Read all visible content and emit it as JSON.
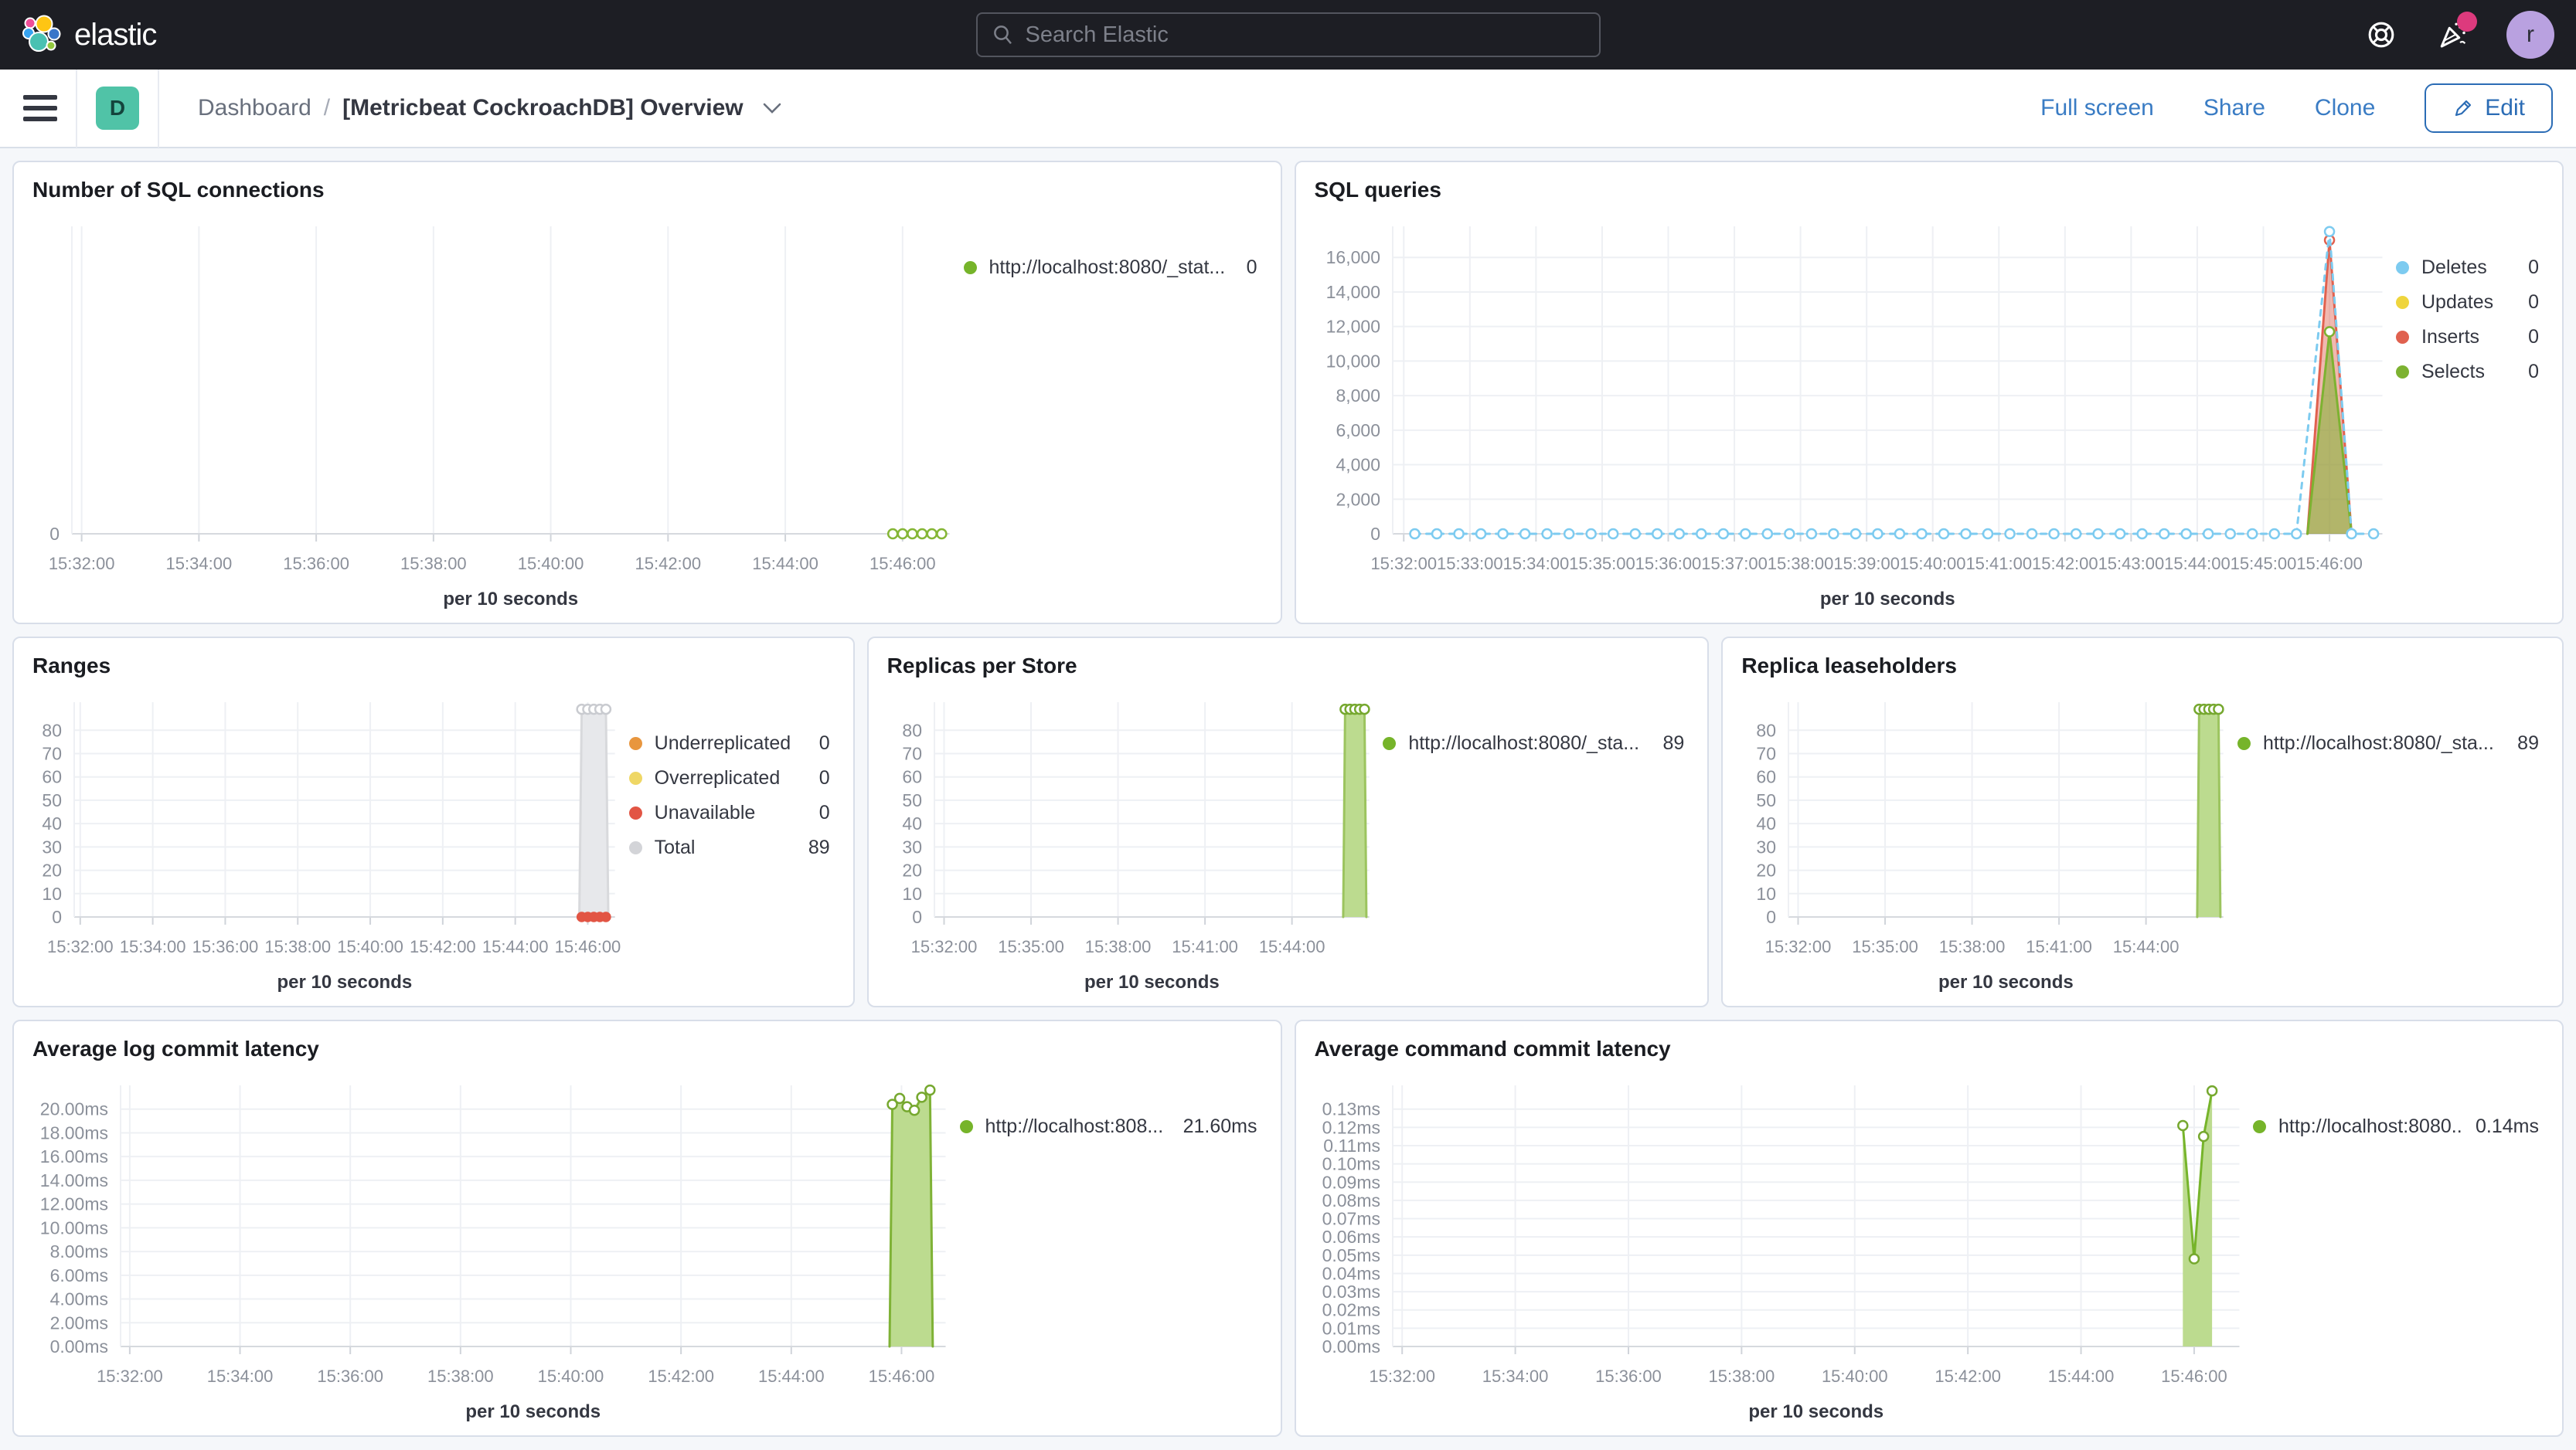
{
  "header": {
    "logo_label": "elastic",
    "search": {
      "placeholder": "Search Elastic"
    },
    "avatar_initial": "r"
  },
  "toolbar": {
    "breadcrumb_root": "Dashboard",
    "breadcrumb_sep": "/",
    "badge": "D",
    "title": "[Metricbeat CockroachDB] Overview",
    "actions": {
      "full_screen": "Full screen",
      "share": "Share",
      "clone": "Clone",
      "edit": "Edit"
    }
  },
  "colors": {
    "header_bg": "#1d1e24",
    "panel_border": "#d8dee9",
    "primary_blue": "#2b6cb5",
    "badge_teal": "#50c3a7",
    "series_green": "#76b42a",
    "series_blue": "#7dcbf0",
    "series_red": "#e0614f",
    "series_yellow": "#efd53d",
    "series_orange": "#e8963e",
    "series_gray": "#d3d4d8"
  },
  "panels": [
    {
      "title": "Number of SQL connections",
      "legend": [
        {
          "label": "http://localhost:8080/_stat...",
          "value": "0",
          "color": "#76b42a"
        }
      ]
    },
    {
      "title": "SQL queries",
      "legend": [
        {
          "label": "Deletes",
          "value": "0",
          "color": "#7dcbf0"
        },
        {
          "label": "Updates",
          "value": "0",
          "color": "#efd53d"
        },
        {
          "label": "Inserts",
          "value": "0",
          "color": "#e0614f"
        },
        {
          "label": "Selects",
          "value": "0",
          "color": "#7db231"
        }
      ]
    },
    {
      "title": "Ranges",
      "legend": [
        {
          "label": "Underreplicated",
          "value": "0",
          "color": "#e8963e"
        },
        {
          "label": "Overreplicated",
          "value": "0",
          "color": "#efd765"
        },
        {
          "label": "Unavailable",
          "value": "0",
          "color": "#e25544"
        },
        {
          "label": "Total",
          "value": "89",
          "color": "#d3d4d8"
        }
      ]
    },
    {
      "title": "Replicas per Store",
      "legend": [
        {
          "label": "http://localhost:8080/_sta...",
          "value": "89",
          "color": "#76b42a"
        }
      ]
    },
    {
      "title": "Replica leaseholders",
      "legend": [
        {
          "label": "http://localhost:8080/_sta...",
          "value": "89",
          "color": "#76b42a"
        }
      ]
    },
    {
      "title": "Average log commit latency",
      "legend": [
        {
          "label": "http://localhost:808...",
          "value": "21.60ms",
          "color": "#76b42a"
        }
      ]
    },
    {
      "title": "Average command commit latency",
      "legend": [
        {
          "label": "http://localhost:8080...",
          "value": "0.14ms",
          "color": "#76b42a"
        }
      ]
    }
  ],
  "chart_data": [
    {
      "type": "line",
      "title": "Number of SQL connections",
      "xlabel": "per 10 seconds",
      "x_domain": [
        "15:31:50",
        "15:46:48"
      ],
      "x_ticks": [
        "15:32:00",
        "15:34:00",
        "15:36:00",
        "15:38:00",
        "15:40:00",
        "15:42:00",
        "15:44:00",
        "15:46:00"
      ],
      "y_ticks": {
        "values": [
          0
        ],
        "labels": [
          "0"
        ]
      },
      "ylim": [
        0,
        9
      ],
      "series": [
        {
          "name": "http://localhost:8080/_stat...",
          "color": "#85b636",
          "dash": true,
          "marker": "open",
          "points_range": {
            "from": "15:45:50",
            "to": "15:46:40",
            "step_s": 10,
            "v": 0
          }
        }
      ]
    },
    {
      "type": "line",
      "title": "SQL queries",
      "xlabel": "per 10 seconds",
      "x_domain": [
        "15:31:50",
        "15:46:48"
      ],
      "x_ticks": [
        "15:32:00",
        "15:33:00",
        "15:34:00",
        "15:35:00",
        "15:36:00",
        "15:37:00",
        "15:38:00",
        "15:39:00",
        "15:40:00",
        "15:41:00",
        "15:42:00",
        "15:43:00",
        "15:44:00",
        "15:45:00",
        "15:46:00"
      ],
      "y_ticks": {
        "values": [
          0,
          2000,
          4000,
          6000,
          8000,
          10000,
          12000,
          14000,
          16000
        ],
        "labels": [
          "0",
          "2,000",
          "4,000",
          "6,000",
          "8,000",
          "10,000",
          "12,000",
          "14,000",
          "16,000"
        ]
      },
      "ylim": [
        0,
        17800
      ],
      "series": [
        {
          "name": "Updates",
          "color": "#efd53d",
          "marker": null,
          "points": []
        },
        {
          "name": "Inserts",
          "color": "#e0614f",
          "fill": "rgba(224,97,79,0.45)",
          "marker": "open",
          "points": [
            [
              "15:45:40",
              0
            ],
            [
              "15:46:00",
              17000
            ],
            [
              "15:46:20",
              0
            ]
          ],
          "marker_points": [
            [
              "15:46:00",
              17000
            ]
          ]
        },
        {
          "name": "Selects",
          "color": "#7db231",
          "fill": "rgba(125,178,49,0.55)",
          "marker": "open",
          "points": [
            [
              "15:45:40",
              0
            ],
            [
              "15:46:00",
              11700
            ],
            [
              "15:46:20",
              0
            ]
          ],
          "marker_points": [
            [
              "15:46:00",
              11700
            ]
          ]
        },
        {
          "name": "Deletes",
          "color": "#7dcbf0",
          "dash": true,
          "marker": "open",
          "points_range": {
            "from": "15:32:10",
            "to": "15:45:40",
            "step_s": 20,
            "v": 0
          },
          "points": [
            [
              "15:46:00",
              17500
            ],
            [
              "15:46:20",
              0
            ],
            [
              "15:46:40",
              0
            ]
          ]
        }
      ]
    },
    {
      "type": "area",
      "title": "Ranges",
      "xlabel": "per 10 seconds",
      "x_domain": [
        "15:31:50",
        "15:46:45"
      ],
      "x_ticks": [
        "15:32:00",
        "15:34:00",
        "15:36:00",
        "15:38:00",
        "15:40:00",
        "15:42:00",
        "15:44:00",
        "15:46:00"
      ],
      "y_ticks": {
        "values": [
          0,
          10,
          20,
          30,
          40,
          50,
          60,
          70,
          80
        ],
        "labels": [
          "0",
          "10",
          "20",
          "30",
          "40",
          "50",
          "60",
          "70",
          "80"
        ]
      },
      "ylim": [
        0,
        92
      ],
      "series": [
        {
          "name": "Total",
          "color": "#d8d9dc",
          "fill": "#e7e8eb",
          "marker": "open",
          "marker_color": "#c9cbd0",
          "points_range": {
            "from": "15:45:50",
            "to": "15:46:30",
            "step_s": 10,
            "v": 89
          },
          "points": [
            [
              "15:45:46",
              0
            ],
            [
              "15:46:34",
              0
            ]
          ],
          "marker_points": [
            [
              "15:45:50",
              89
            ],
            [
              "15:46:00",
              89
            ],
            [
              "15:46:10",
              89
            ],
            [
              "15:46:20",
              89
            ],
            [
              "15:46:30",
              89
            ]
          ]
        },
        {
          "name": "Unavailable",
          "color": "#e25544",
          "marker": "filled",
          "points_range": {
            "from": "15:45:50",
            "to": "15:46:30",
            "step_s": 10,
            "v": 0
          }
        }
      ]
    },
    {
      "type": "area",
      "title": "Replicas per Store",
      "xlabel": "per 10 seconds",
      "x_domain": [
        "15:31:40",
        "15:46:40"
      ],
      "x_ticks": [
        "15:32:00",
        "15:35:00",
        "15:38:00",
        "15:41:00",
        "15:44:00"
      ],
      "y_ticks": {
        "values": [
          0,
          10,
          20,
          30,
          40,
          50,
          60,
          70,
          80
        ],
        "labels": [
          "0",
          "10",
          "20",
          "30",
          "40",
          "50",
          "60",
          "70",
          "80"
        ]
      },
      "ylim": [
        0,
        92
      ],
      "series": [
        {
          "name": "http://localhost:8080/_sta...",
          "color": "#9cc45f",
          "fill": "#bcdb8f",
          "marker": "open",
          "marker_color": "#76a82f",
          "points_range": {
            "from": "15:45:50",
            "to": "15:46:30",
            "step_s": 10,
            "v": 89
          },
          "points": [
            [
              "15:45:46",
              0
            ],
            [
              "15:46:34",
              0
            ]
          ],
          "marker_points": [
            [
              "15:45:50",
              89
            ],
            [
              "15:46:00",
              89
            ],
            [
              "15:46:10",
              89
            ],
            [
              "15:46:20",
              89
            ],
            [
              "15:46:30",
              89
            ]
          ]
        }
      ]
    },
    {
      "type": "area",
      "title": "Replica leaseholders",
      "xlabel": "per 10 seconds",
      "x_domain": [
        "15:31:40",
        "15:46:40"
      ],
      "x_ticks": [
        "15:32:00",
        "15:35:00",
        "15:38:00",
        "15:41:00",
        "15:44:00"
      ],
      "y_ticks": {
        "values": [
          0,
          10,
          20,
          30,
          40,
          50,
          60,
          70,
          80
        ],
        "labels": [
          "0",
          "10",
          "20",
          "30",
          "40",
          "50",
          "60",
          "70",
          "80"
        ]
      },
      "ylim": [
        0,
        92
      ],
      "series": [
        {
          "name": "http://localhost:8080/_sta...",
          "color": "#9cc45f",
          "fill": "#bcdb8f",
          "marker": "open",
          "marker_color": "#76a82f",
          "points_range": {
            "from": "15:45:50",
            "to": "15:46:30",
            "step_s": 10,
            "v": 89
          },
          "points": [
            [
              "15:45:46",
              0
            ],
            [
              "15:46:34",
              0
            ]
          ],
          "marker_points": [
            [
              "15:45:50",
              89
            ],
            [
              "15:46:00",
              89
            ],
            [
              "15:46:10",
              89
            ],
            [
              "15:46:20",
              89
            ],
            [
              "15:46:30",
              89
            ]
          ]
        }
      ]
    },
    {
      "type": "area",
      "title": "Average log commit latency",
      "xlabel": "per 10 seconds",
      "x_domain": [
        "15:31:50",
        "15:46:48"
      ],
      "x_ticks": [
        "15:32:00",
        "15:34:00",
        "15:36:00",
        "15:38:00",
        "15:40:00",
        "15:42:00",
        "15:44:00",
        "15:46:00"
      ],
      "y_ticks": {
        "values": [
          0,
          2,
          4,
          6,
          8,
          10,
          12,
          14,
          16,
          18,
          20
        ],
        "labels": [
          "0.00ms",
          "2.00ms",
          "4.00ms",
          "6.00ms",
          "8.00ms",
          "10.00ms",
          "12.00ms",
          "14.00ms",
          "16.00ms",
          "18.00ms",
          "20.00ms"
        ]
      },
      "ylim": [
        0,
        22
      ],
      "series": [
        {
          "name": "http://localhost:808...",
          "color": "#7fb236",
          "fill": "#bcdb8f",
          "marker": "open",
          "marker_color": "#76a82f",
          "points": [
            [
              "15:45:47",
              0
            ],
            [
              "15:45:50",
              20.4
            ],
            [
              "15:45:58",
              20.9
            ],
            [
              "15:46:06",
              20.2
            ],
            [
              "15:46:14",
              19.9
            ],
            [
              "15:46:22",
              21.0
            ],
            [
              "15:46:31",
              21.6
            ],
            [
              "15:46:34",
              0
            ]
          ],
          "marker_points": [
            [
              "15:45:50",
              20.4
            ],
            [
              "15:45:58",
              20.9
            ],
            [
              "15:46:06",
              20.2
            ],
            [
              "15:46:14",
              19.9
            ],
            [
              "15:46:22",
              21.0
            ],
            [
              "15:46:31",
              21.6
            ]
          ]
        }
      ]
    },
    {
      "type": "area",
      "title": "Average command commit latency",
      "xlabel": "per 10 seconds",
      "x_domain": [
        "15:31:50",
        "15:46:48"
      ],
      "x_ticks": [
        "15:32:00",
        "15:34:00",
        "15:36:00",
        "15:38:00",
        "15:40:00",
        "15:42:00",
        "15:44:00",
        "15:46:00"
      ],
      "y_ticks": {
        "values": [
          0,
          0.01,
          0.02,
          0.03,
          0.04,
          0.05,
          0.06,
          0.07,
          0.08,
          0.09,
          0.1,
          0.11,
          0.12,
          0.13
        ],
        "labels": [
          "0.00ms",
          "0.01ms",
          "0.02ms",
          "0.03ms",
          "0.04ms",
          "0.05ms",
          "0.06ms",
          "0.07ms",
          "0.08ms",
          "0.09ms",
          "0.10ms",
          "0.11ms",
          "0.12ms",
          "0.13ms"
        ]
      },
      "ylim": [
        0,
        0.143
      ],
      "series": [
        {
          "name": "http://localhost:8080...",
          "color": "#76b42a",
          "fill": "#bcdb8f",
          "marker": "open",
          "marker_color": "#76a82f",
          "points": [
            [
              "15:45:48",
              0.121
            ],
            [
              "15:46:00",
              0.048
            ],
            [
              "15:46:10",
              0.115
            ],
            [
              "15:46:19",
              0.14
            ]
          ]
        }
      ]
    }
  ]
}
